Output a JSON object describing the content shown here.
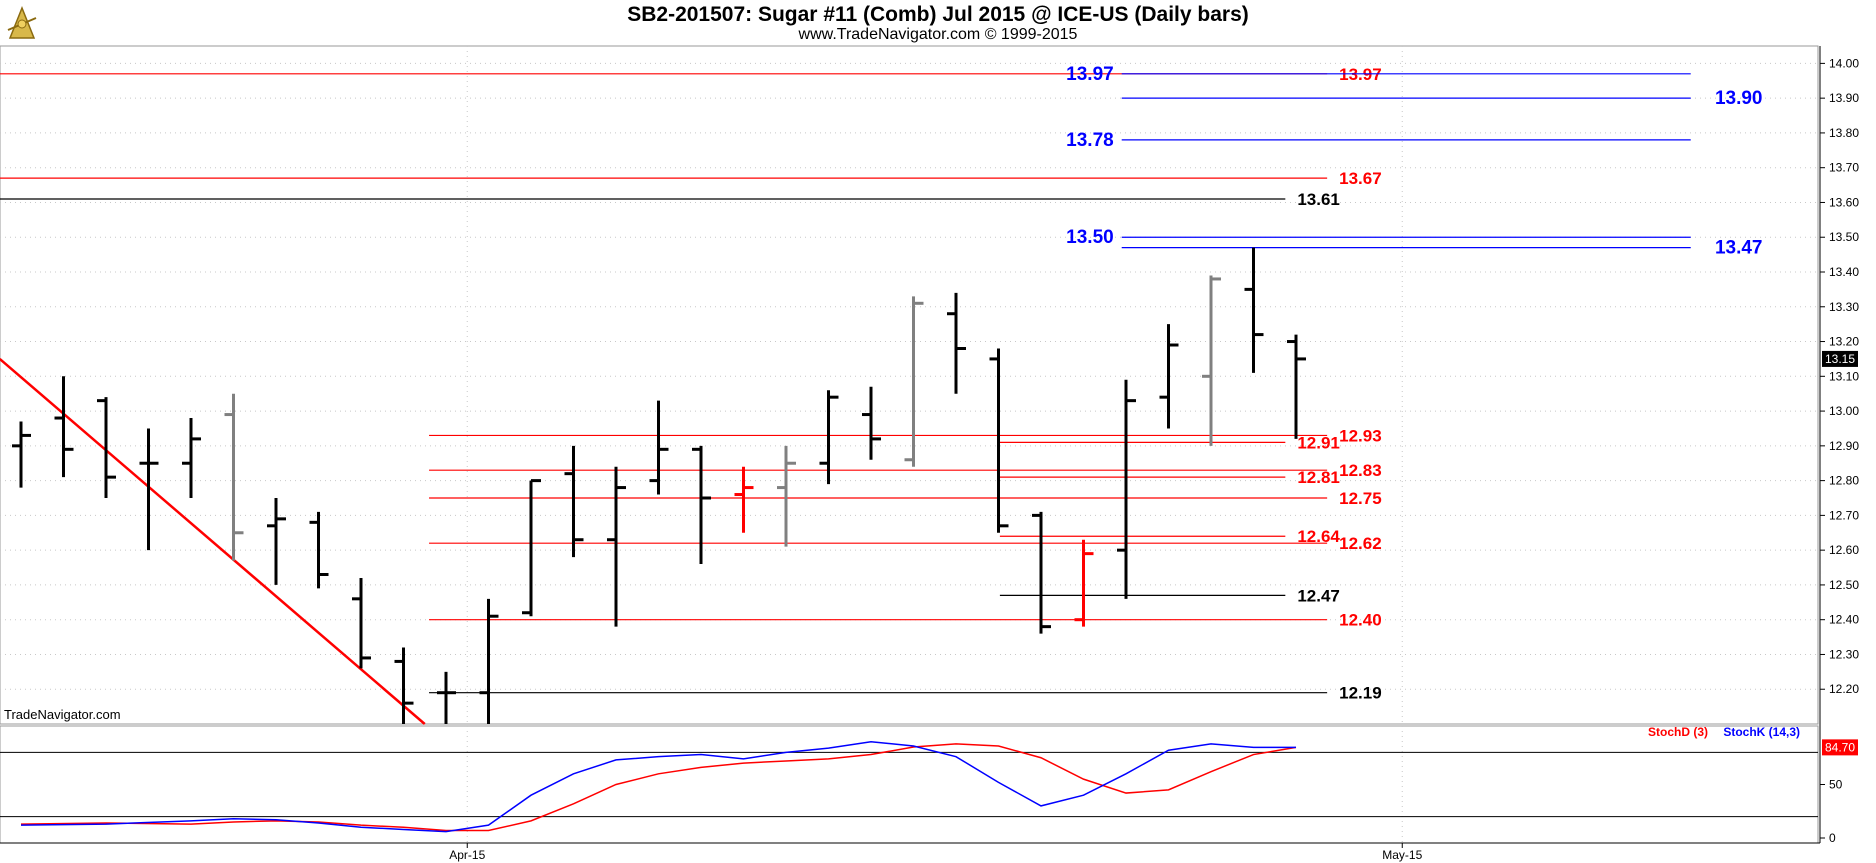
{
  "header": {
    "title": "SB2-201507:  Sugar #11 (Comb) Jul 2015 @ ICE-US  (Daily bars)",
    "subtitle": "www.TradeNavigator.com © 1999-2015"
  },
  "watermark": "TradeNavigator.com",
  "colors": {
    "bar_black": "#000000",
    "bar_gray": "#808080",
    "bar_red": "#ff0000",
    "level_red": "#ff0000",
    "level_blue": "#0000ff",
    "level_black": "#000000",
    "stoch_d": "#ff0000",
    "stoch_k": "#0000ff",
    "grid": "#c8c8c8",
    "tick_up": "#00c000"
  },
  "chart_data": [
    {
      "type": "ohlc",
      "title": "SB2-201507:  Sugar #11 (Comb) Jul 2015 @ ICE-US  (Daily bars)",
      "ylim": [
        12.1,
        14.05
      ],
      "y_ticks": [
        "14.00",
        "13.90",
        "13.80",
        "13.70",
        "13.60",
        "13.50",
        "13.40",
        "13.30",
        "13.20",
        "13.10",
        "13.00",
        "12.90",
        "12.80",
        "12.70",
        "12.60",
        "12.50",
        "12.40",
        "12.30",
        "12.20"
      ],
      "x_ticks": [
        {
          "label": "Apr-15",
          "bar": 11
        },
        {
          "label": "May-15",
          "bar": 33
        }
      ],
      "last_price": "13.15",
      "bars": [
        {
          "o": 12.9,
          "h": 12.97,
          "l": 12.78,
          "c": 12.93,
          "color": "black"
        },
        {
          "o": 12.98,
          "h": 13.1,
          "l": 12.81,
          "c": 12.89,
          "color": "black"
        },
        {
          "o": 13.03,
          "h": 13.04,
          "l": 12.75,
          "c": 12.81,
          "color": "black"
        },
        {
          "o": 12.85,
          "h": 12.95,
          "l": 12.6,
          "c": 12.85,
          "color": "black"
        },
        {
          "o": 12.85,
          "h": 12.98,
          "l": 12.75,
          "c": 12.92,
          "color": "black"
        },
        {
          "o": 12.99,
          "h": 13.05,
          "l": 12.57,
          "c": 12.65,
          "color": "gray"
        },
        {
          "o": 12.67,
          "h": 12.75,
          "l": 12.5,
          "c": 12.69,
          "color": "black"
        },
        {
          "o": 12.68,
          "h": 12.71,
          "l": 12.49,
          "c": 12.53,
          "color": "black"
        },
        {
          "o": 12.46,
          "h": 12.52,
          "l": 12.26,
          "c": 12.29,
          "color": "black"
        },
        {
          "o": 12.28,
          "h": 12.32,
          "l": 12.1,
          "c": 12.16,
          "color": "black"
        },
        {
          "o": 12.19,
          "h": 12.25,
          "l": 12.1,
          "c": 12.19,
          "color": "black"
        },
        {
          "o": 12.19,
          "h": 12.46,
          "l": 12.1,
          "c": 12.41,
          "color": "black"
        },
        {
          "o": 12.42,
          "h": 12.8,
          "l": 12.41,
          "c": 12.8,
          "color": "black"
        },
        {
          "o": 12.82,
          "h": 12.9,
          "l": 12.58,
          "c": 12.63,
          "color": "black"
        },
        {
          "o": 12.63,
          "h": 12.84,
          "l": 12.38,
          "c": 12.78,
          "color": "black"
        },
        {
          "o": 12.8,
          "h": 13.03,
          "l": 12.76,
          "c": 12.89,
          "color": "black"
        },
        {
          "o": 12.89,
          "h": 12.9,
          "l": 12.56,
          "c": 12.75,
          "color": "black"
        },
        {
          "o": 12.76,
          "h": 12.84,
          "l": 12.65,
          "c": 12.78,
          "color": "red"
        },
        {
          "o": 12.78,
          "h": 12.9,
          "l": 12.61,
          "c": 12.85,
          "color": "gray"
        },
        {
          "o": 12.85,
          "h": 13.06,
          "l": 12.79,
          "c": 13.04,
          "color": "black"
        },
        {
          "o": 12.99,
          "h": 13.07,
          "l": 12.86,
          "c": 12.92,
          "color": "black"
        },
        {
          "o": 12.86,
          "h": 13.33,
          "l": 12.84,
          "c": 13.31,
          "color": "gray"
        },
        {
          "o": 13.28,
          "h": 13.34,
          "l": 13.05,
          "c": 13.18,
          "color": "black"
        },
        {
          "o": 13.15,
          "h": 13.18,
          "l": 12.65,
          "c": 12.67,
          "color": "black"
        },
        {
          "o": 12.7,
          "h": 12.71,
          "l": 12.36,
          "c": 12.38,
          "color": "black"
        },
        {
          "o": 12.4,
          "h": 12.63,
          "l": 12.38,
          "c": 12.59,
          "color": "red"
        },
        {
          "o": 12.6,
          "h": 13.09,
          "l": 12.46,
          "c": 13.03,
          "color": "black"
        },
        {
          "o": 13.04,
          "h": 13.25,
          "l": 12.95,
          "c": 13.19,
          "color": "black"
        },
        {
          "o": 13.1,
          "h": 13.39,
          "l": 12.9,
          "c": 13.38,
          "color": "gray"
        },
        {
          "o": 13.35,
          "h": 13.47,
          "l": 13.11,
          "c": 13.22,
          "color": "black"
        },
        {
          "o": 13.2,
          "h": 13.22,
          "l": 12.92,
          "c": 13.15,
          "color": "black"
        }
      ],
      "levels": [
        {
          "value": 13.97,
          "label": "13.97",
          "color": "red",
          "x0": 0,
          "x1": 0.73,
          "label_pos": "right"
        },
        {
          "value": 13.97,
          "label": "13.97",
          "color": "blue",
          "x0": 0.617,
          "x1": 0.93,
          "label_pos": "left"
        },
        {
          "value": 13.9,
          "label": "13.90",
          "color": "blue",
          "x0": 0.617,
          "x1": 0.93,
          "label_pos": "end"
        },
        {
          "value": 13.78,
          "label": "13.78",
          "color": "blue",
          "x0": 0.617,
          "x1": 0.93,
          "label_pos": "left"
        },
        {
          "value": 13.67,
          "label": "13.67",
          "color": "red",
          "x0": 0,
          "x1": 0.73,
          "label_pos": "right"
        },
        {
          "value": 13.61,
          "label": "13.61",
          "color": "black",
          "x0": 0,
          "x1": 0.707,
          "label_pos": "right"
        },
        {
          "value": 13.5,
          "label": "13.50",
          "color": "blue",
          "x0": 0.617,
          "x1": 0.93,
          "label_pos": "left"
        },
        {
          "value": 13.47,
          "label": "13.47",
          "color": "blue",
          "x0": 0.617,
          "x1": 0.93,
          "label_pos": "end"
        },
        {
          "value": 12.93,
          "label": "12.93",
          "color": "red",
          "x0": 0.236,
          "x1": 0.73,
          "label_pos": "right"
        },
        {
          "value": 12.91,
          "label": "12.91",
          "color": "red",
          "x0": 0.55,
          "x1": 0.707,
          "label_pos": "right"
        },
        {
          "value": 12.83,
          "label": "12.83",
          "color": "red",
          "x0": 0.236,
          "x1": 0.73,
          "label_pos": "right"
        },
        {
          "value": 12.81,
          "label": "12.81",
          "color": "red",
          "x0": 0.55,
          "x1": 0.707,
          "label_pos": "right"
        },
        {
          "value": 12.75,
          "label": "12.75",
          "color": "red",
          "x0": 0.236,
          "x1": 0.73,
          "label_pos": "right"
        },
        {
          "value": 12.64,
          "label": "12.64",
          "color": "red",
          "x0": 0.55,
          "x1": 0.707,
          "label_pos": "right"
        },
        {
          "value": 12.62,
          "label": "12.62",
          "color": "red",
          "x0": 0.236,
          "x1": 0.73,
          "label_pos": "right"
        },
        {
          "value": 12.47,
          "label": "12.47",
          "color": "black",
          "x0": 0.55,
          "x1": 0.707,
          "label_pos": "right"
        },
        {
          "value": 12.4,
          "label": "12.40",
          "color": "red",
          "x0": 0.236,
          "x1": 0.73,
          "label_pos": "right"
        },
        {
          "value": 12.19,
          "label": "12.19",
          "color": "black",
          "x0": 0.236,
          "x1": 0.73,
          "label_pos": "right"
        }
      ],
      "trendline": {
        "from": {
          "bar": -0.5,
          "value": 13.15
        },
        "to": {
          "bar": 9.5,
          "value": 12.1
        },
        "color": "red"
      }
    },
    {
      "type": "line",
      "title": "",
      "legend": [
        "StochD (3)",
        "StochK (14,3)"
      ],
      "ylim": [
        0,
        100
      ],
      "y_ticks": [
        "50",
        "0"
      ],
      "ref_lines": [
        80,
        20
      ],
      "last_value": "84.70",
      "series": [
        {
          "name": "StochD (3)",
          "color": "red",
          "points": [
            [
              0,
              13
            ],
            [
              2,
              14
            ],
            [
              4,
              13
            ],
            [
              5,
              15
            ],
            [
              6,
              16
            ],
            [
              7,
              15
            ],
            [
              8,
              12
            ],
            [
              9,
              10
            ],
            [
              10,
              7
            ],
            [
              11,
              7
            ],
            [
              12,
              16
            ],
            [
              13,
              32
            ],
            [
              14,
              50
            ],
            [
              15,
              60
            ],
            [
              16,
              66
            ],
            [
              17,
              70
            ],
            [
              18,
              72
            ],
            [
              19,
              74
            ],
            [
              20,
              78
            ],
            [
              21,
              85
            ],
            [
              22,
              88
            ],
            [
              23,
              86
            ],
            [
              24,
              75
            ],
            [
              25,
              55
            ],
            [
              26,
              42
            ],
            [
              27,
              45
            ],
            [
              28,
              62
            ],
            [
              29,
              78
            ],
            [
              30,
              84.7
            ]
          ]
        },
        {
          "name": "StochK (14,3)",
          "color": "blue",
          "points": [
            [
              0,
              12
            ],
            [
              2,
              13
            ],
            [
              4,
              16
            ],
            [
              5,
              18
            ],
            [
              6,
              17
            ],
            [
              7,
              14
            ],
            [
              8,
              10
            ],
            [
              9,
              8
            ],
            [
              10,
              6
            ],
            [
              11,
              12
            ],
            [
              12,
              40
            ],
            [
              13,
              60
            ],
            [
              14,
              73
            ],
            [
              15,
              76
            ],
            [
              16,
              78
            ],
            [
              17,
              74
            ],
            [
              18,
              80
            ],
            [
              19,
              84
            ],
            [
              20,
              90
            ],
            [
              21,
              86
            ],
            [
              22,
              76
            ],
            [
              23,
              52
            ],
            [
              24,
              30
            ],
            [
              25,
              40
            ],
            [
              26,
              60
            ],
            [
              27,
              82
            ],
            [
              28,
              88
            ],
            [
              29,
              84.7
            ],
            [
              30,
              84.7
            ]
          ]
        }
      ]
    }
  ]
}
